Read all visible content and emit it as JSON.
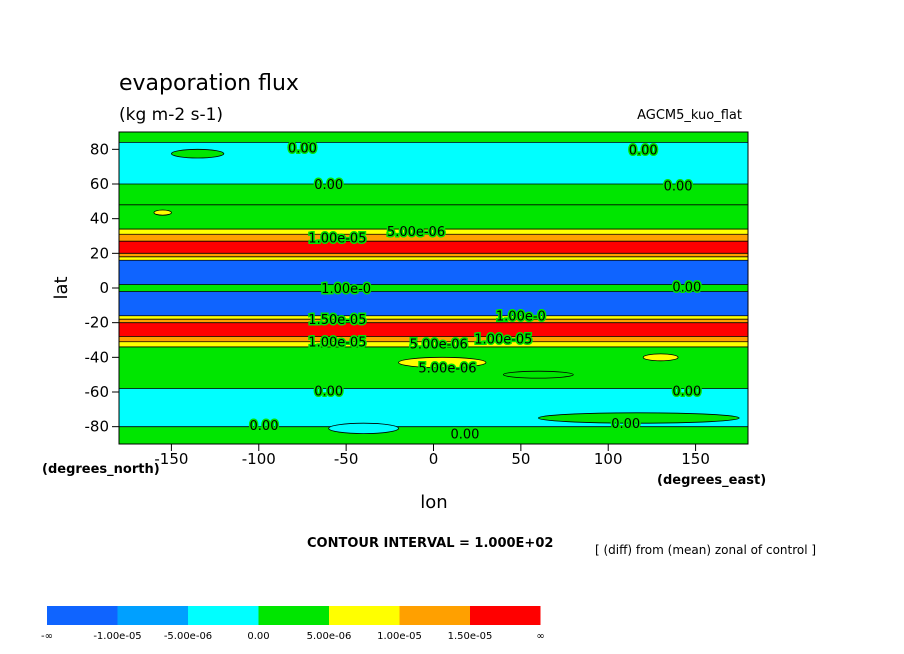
{
  "chart_data": {
    "type": "heatmap",
    "title": "evaporation flux",
    "subtitle": "(kg m-2 s-1)",
    "dataset": "AGCM5_kuo_flat",
    "xlabel": "lon",
    "ylabel": "lat",
    "x_unit": "(degrees_east)",
    "y_unit": "(degrees_north)",
    "xlim": [
      -180,
      180
    ],
    "ylim": [
      -90,
      90
    ],
    "x_ticks": [
      -150,
      -100,
      -50,
      0,
      50,
      100,
      150
    ],
    "y_ticks": [
      -80,
      -60,
      -40,
      -20,
      0,
      20,
      40,
      60,
      80
    ],
    "contour_interval_text": "CONTOUR INTERVAL = 1.000E+02",
    "note": "[ (diff) from (mean) zonal of control ]",
    "colors": {
      "c0": "#0f64ff",
      "c1": "#00a0ff",
      "c2": "#00ffff",
      "c3": "#00e600",
      "c4": "#ffff00",
      "c5": "#ffa000",
      "c6": "#ff0000"
    },
    "legend": {
      "colors": [
        "c0",
        "c1",
        "c2",
        "c3",
        "c4",
        "c5",
        "c6"
      ],
      "labels": [
        "-∞",
        "-1.00e-05",
        "-5.00e-06",
        "0.00",
        "5.00e-06",
        "1.00e-05",
        "1.50e-05",
        "∞"
      ]
    },
    "bands": [
      {
        "lat": [
          84,
          90
        ],
        "color": "c3"
      },
      {
        "lat": [
          60,
          84
        ],
        "color": "c2"
      },
      {
        "lat": [
          48,
          60
        ],
        "color": "c3"
      },
      {
        "lat": [
          34,
          48
        ],
        "color": "c3"
      },
      {
        "lat": [
          31,
          34
        ],
        "color": "c4"
      },
      {
        "lat": [
          27,
          31
        ],
        "color": "c5"
      },
      {
        "lat": [
          20,
          27
        ],
        "color": "c6"
      },
      {
        "lat": [
          18,
          20
        ],
        "color": "c5"
      },
      {
        "lat": [
          16,
          18
        ],
        "color": "c4"
      },
      {
        "lat": [
          2,
          16
        ],
        "color": "c0"
      },
      {
        "lat": [
          -2,
          2
        ],
        "color": "c3"
      },
      {
        "lat": [
          -16,
          -2
        ],
        "color": "c0"
      },
      {
        "lat": [
          -18,
          -16
        ],
        "color": "c4"
      },
      {
        "lat": [
          -20,
          -18
        ],
        "color": "c5"
      },
      {
        "lat": [
          -28,
          -20
        ],
        "color": "c6"
      },
      {
        "lat": [
          -31,
          -28
        ],
        "color": "c5"
      },
      {
        "lat": [
          -34,
          -31
        ],
        "color": "c4"
      },
      {
        "lat": [
          -58,
          -34
        ],
        "color": "c3"
      },
      {
        "lat": [
          -80,
          -58
        ],
        "color": "c2"
      },
      {
        "lat": [
          -90,
          -80
        ],
        "color": "c3"
      }
    ],
    "patches": [
      {
        "lon": [
          -150,
          -120
        ],
        "lat": [
          75,
          80
        ],
        "color": "c3"
      },
      {
        "lon": [
          -160,
          -150
        ],
        "lat": [
          42,
          45
        ],
        "color": "c4"
      },
      {
        "lon": [
          40,
          80
        ],
        "lat": [
          -52,
          -48
        ],
        "color": "c3"
      },
      {
        "lon": [
          -20,
          30
        ],
        "lat": [
          -46,
          -40
        ],
        "color": "c4"
      },
      {
        "lon": [
          120,
          140
        ],
        "lat": [
          -42,
          -38
        ],
        "color": "c4"
      },
      {
        "lon": [
          -60,
          -20
        ],
        "lat": [
          -84,
          -78
        ],
        "color": "c2"
      },
      {
        "lon": [
          60,
          175
        ],
        "lat": [
          -78,
          -72
        ],
        "color": "c3"
      }
    ],
    "contour_labels": [
      {
        "lon": -75,
        "lat": 81,
        "text": "0.00"
      },
      {
        "lon": 120,
        "lat": 80,
        "text": "0.00"
      },
      {
        "lon": -60,
        "lat": 60,
        "text": "0.00"
      },
      {
        "lon": 140,
        "lat": 59,
        "text": "0.00"
      },
      {
        "lon": -10,
        "lat": 33,
        "text": "5.00e-06"
      },
      {
        "lon": -55,
        "lat": 29,
        "text": "1.00e-05"
      },
      {
        "lon": 145,
        "lat": 1,
        "text": "0.00"
      },
      {
        "lon": -50,
        "lat": 0,
        "text": "1.00e-0"
      },
      {
        "lon": 50,
        "lat": -16,
        "text": "1.00e-0"
      },
      {
        "lon": -55,
        "lat": -18,
        "text": "1.50e-05"
      },
      {
        "lon": -55,
        "lat": -31,
        "text": "1.00e-05"
      },
      {
        "lon": 3,
        "lat": -32,
        "text": "5.00e-06"
      },
      {
        "lon": 40,
        "lat": -29,
        "text": "1.00e-05"
      },
      {
        "lon": 8,
        "lat": -46,
        "text": "5.00e-06"
      },
      {
        "lon": -60,
        "lat": -59,
        "text": "0.00"
      },
      {
        "lon": 145,
        "lat": -59,
        "text": "0.00"
      },
      {
        "lon": -97,
        "lat": -79,
        "text": "0.00"
      },
      {
        "lon": 110,
        "lat": -78,
        "text": "0.00"
      },
      {
        "lon": 18,
        "lat": -84,
        "text": "0.00"
      }
    ]
  }
}
